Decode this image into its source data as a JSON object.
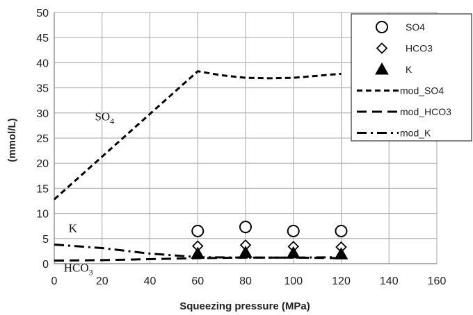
{
  "chart_data": {
    "type": "scatter",
    "title": "",
    "xlabel": "Squeezing pressure (MPa)",
    "ylabel": "(mmol/L)",
    "xlim": [
      0,
      160
    ],
    "ylim": [
      0,
      50
    ],
    "x_ticks": [
      0,
      20,
      40,
      60,
      80,
      100,
      120,
      140,
      160
    ],
    "y_ticks": [
      0,
      5,
      10,
      15,
      20,
      25,
      30,
      35,
      40,
      45,
      50
    ],
    "grid": true,
    "legend_position": "top-right",
    "series": [
      {
        "name": "SO4",
        "kind": "points",
        "marker": "open-circle",
        "x": [
          60,
          80,
          100,
          120
        ],
        "y": [
          6.5,
          7.3,
          6.5,
          6.5
        ]
      },
      {
        "name": "HCO3",
        "kind": "points",
        "marker": "open-diamond",
        "x": [
          60,
          80,
          100,
          120
        ],
        "y": [
          3.5,
          3.7,
          3.4,
          3.3
        ]
      },
      {
        "name": "K",
        "kind": "points",
        "marker": "filled-triangle",
        "x": [
          60,
          80,
          100,
          120
        ],
        "y": [
          2.0,
          2.2,
          2.1,
          1.9
        ]
      },
      {
        "name": "mod_SO4",
        "kind": "line",
        "dash": "short",
        "x": [
          0,
          60,
          70,
          80,
          90,
          100,
          110,
          120
        ],
        "y": [
          12.8,
          38.3,
          37.5,
          37.0,
          36.9,
          37.0,
          37.4,
          37.8
        ]
      },
      {
        "name": "mod_HCO3",
        "kind": "line",
        "dash": "long",
        "x": [
          0,
          20,
          40,
          60,
          80,
          100,
          120
        ],
        "y": [
          0.6,
          0.7,
          0.9,
          1.1,
          1.2,
          1.2,
          1.1
        ]
      },
      {
        "name": "mod_K",
        "kind": "line",
        "dash": "dash-dot",
        "x": [
          0,
          20,
          40,
          60,
          80,
          100,
          120
        ],
        "y": [
          3.8,
          3.1,
          2.0,
          1.3,
          1.2,
          1.2,
          1.3
        ]
      }
    ],
    "annotations": [
      {
        "label_key": "so4",
        "base": "SO",
        "sub": "4",
        "x": 17,
        "y": 28.5
      },
      {
        "label_key": "k",
        "base": "K",
        "sub": "",
        "x": 6,
        "y": 6.3
      },
      {
        "label_key": "hco3",
        "base": "HCO",
        "sub": "3",
        "x": 4,
        "y": -1.6
      }
    ]
  }
}
